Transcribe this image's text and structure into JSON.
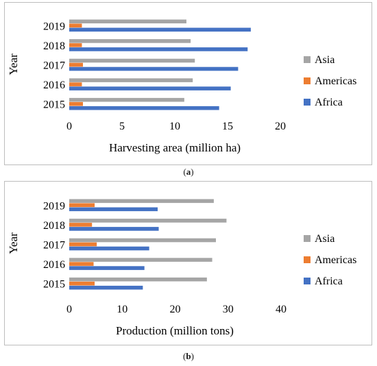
{
  "chart_data": [
    {
      "type": "bar",
      "orientation": "horizontal",
      "categories": [
        "2015",
        "2016",
        "2017",
        "2018",
        "2019"
      ],
      "series": [
        {
          "name": "Asia",
          "color": "#a5a5a5",
          "values": [
            10.9,
            11.7,
            11.9,
            11.5,
            11.1
          ]
        },
        {
          "name": "Americas",
          "color": "#ed7d31",
          "values": [
            1.3,
            1.2,
            1.3,
            1.2,
            1.2
          ]
        },
        {
          "name": "Africa",
          "color": "#4472c4",
          "values": [
            14.2,
            15.3,
            16.0,
            16.9,
            17.2
          ]
        }
      ],
      "xlabel": "Harvesting area (million ha)",
      "ylabel": "Year",
      "xlim": [
        0,
        20
      ],
      "xticks": [
        "0",
        "5",
        "10",
        "15",
        "20"
      ],
      "legend": "right",
      "caption_label": "a"
    },
    {
      "type": "bar",
      "orientation": "horizontal",
      "categories": [
        "2015",
        "2016",
        "2017",
        "2018",
        "2019"
      ],
      "series": [
        {
          "name": "Asia",
          "color": "#a5a5a5",
          "values": [
            26.0,
            27.0,
            27.7,
            29.7,
            27.3
          ]
        },
        {
          "name": "Americas",
          "color": "#ed7d31",
          "values": [
            4.8,
            4.6,
            5.2,
            4.3,
            4.8
          ]
        },
        {
          "name": "Africa",
          "color": "#4472c4",
          "values": [
            13.9,
            14.2,
            15.1,
            16.9,
            16.7
          ]
        }
      ],
      "xlabel": "Production (million tons)",
      "ylabel": "Year",
      "xlim": [
        0,
        40
      ],
      "xticks": [
        "0",
        "10",
        "20",
        "30",
        "40"
      ],
      "legend": "right",
      "caption_label": "b"
    }
  ]
}
